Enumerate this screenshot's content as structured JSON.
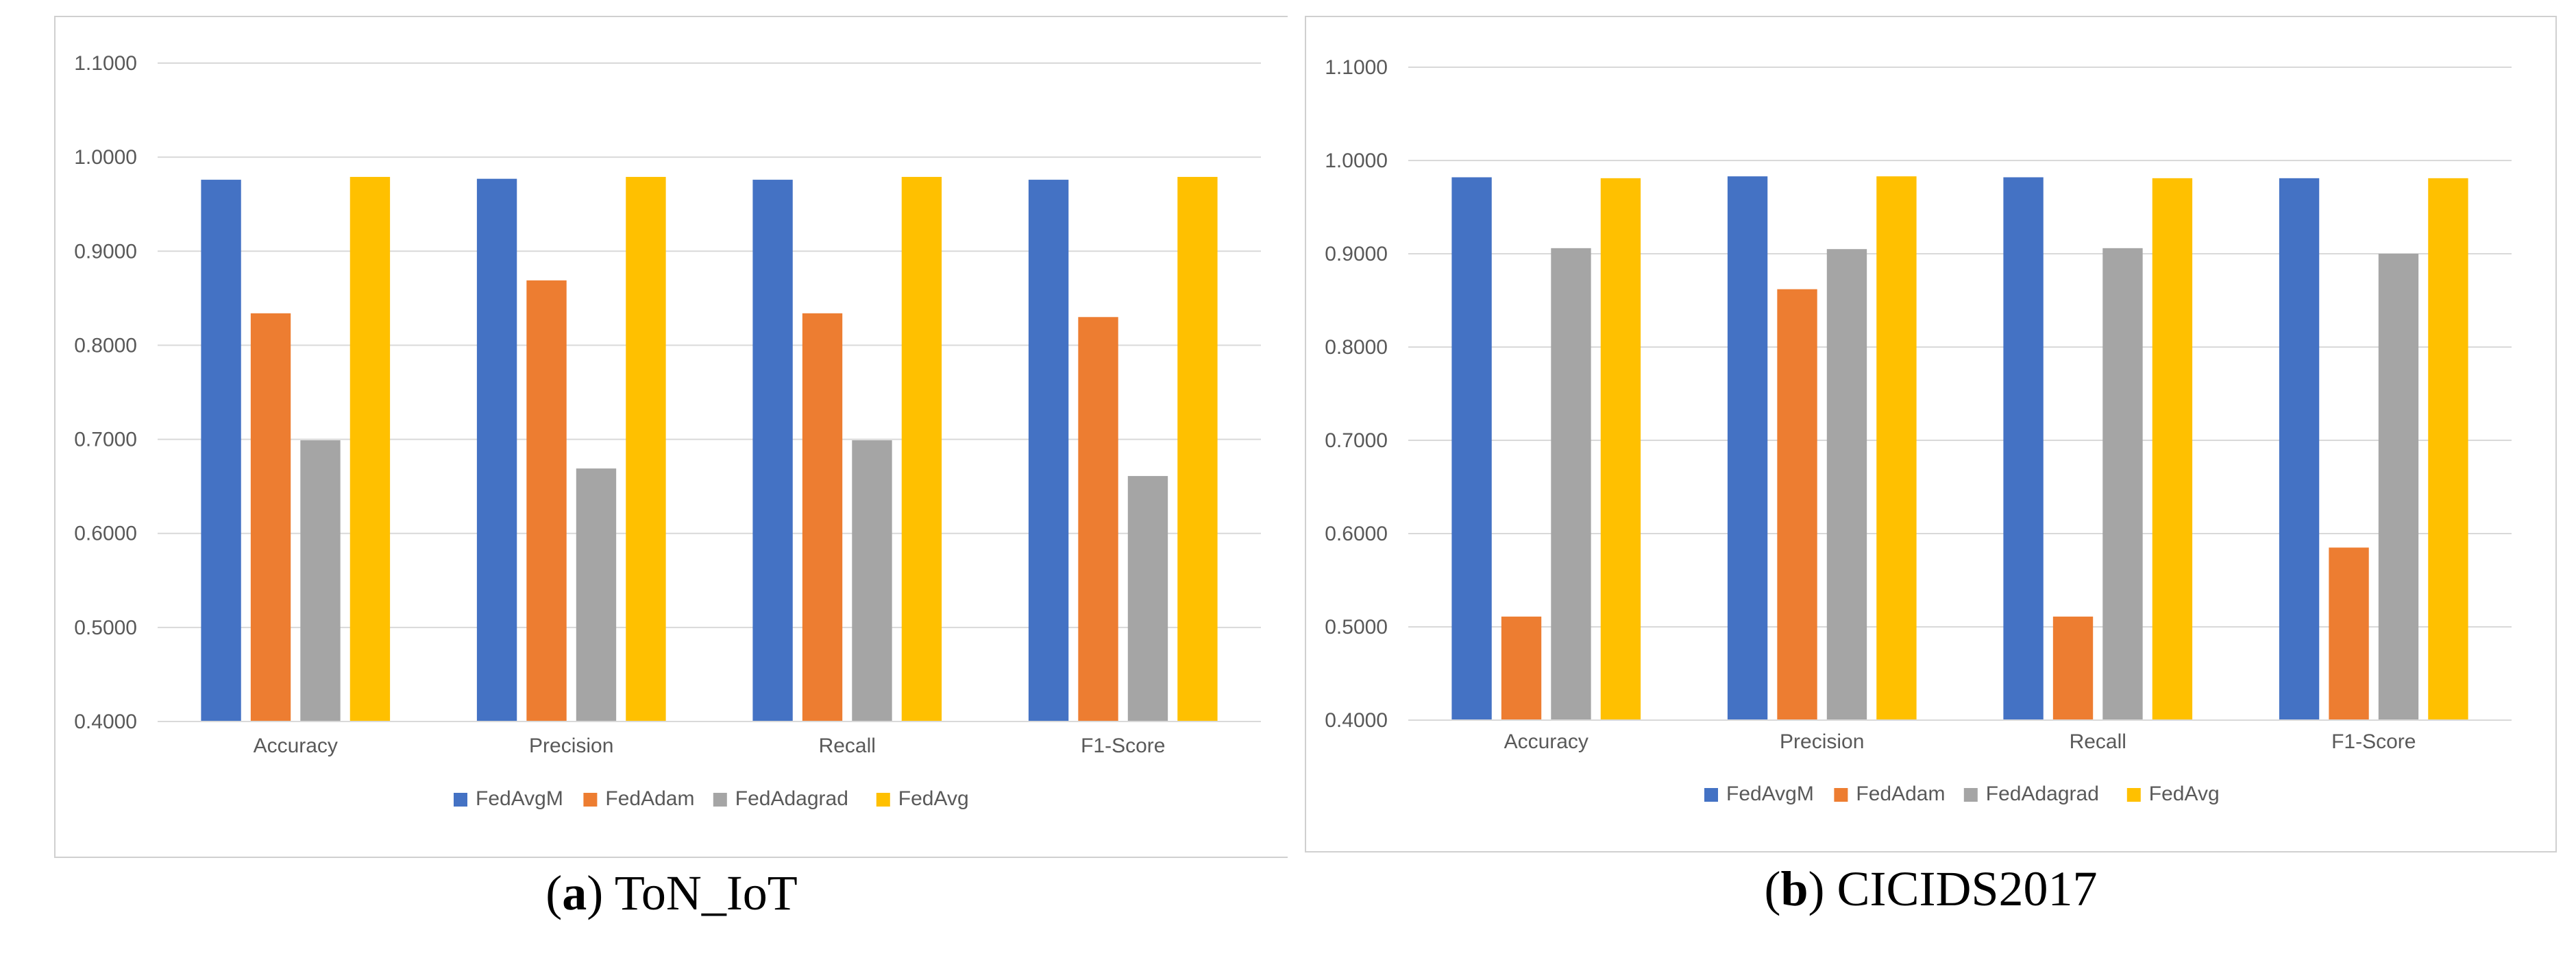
{
  "figures": [
    {
      "caption_letter": "a",
      "caption_text": "ToN_IoT"
    },
    {
      "caption_letter": "b",
      "caption_text": "CICIDS2017"
    }
  ],
  "colors": {
    "FedAvgM": "#4472C4",
    "FedAdam": "#ED7D31",
    "FedAdagrad": "#A5A5A5",
    "FedAvg": "#FFC000",
    "grid": "#D9D9D9",
    "frame": "#D0D0D0"
  },
  "chart_data": [
    {
      "type": "bar",
      "title": "",
      "xlabel": "",
      "ylabel": "",
      "ylim": [
        0.4,
        1.1
      ],
      "yticks": [
        "0.4000",
        "0.5000",
        "0.6000",
        "0.7000",
        "0.8000",
        "0.9000",
        "1.0000",
        "1.1000"
      ],
      "categories": [
        "Accuracy",
        "Precision",
        "Recall",
        "F1-Score"
      ],
      "legend_position": "bottom",
      "series": [
        {
          "name": "FedAvgM",
          "values": [
            0.976,
            0.977,
            0.976,
            0.976
          ]
        },
        {
          "name": "FedAdam",
          "values": [
            0.834,
            0.869,
            0.834,
            0.83
          ]
        },
        {
          "name": "FedAdagrad",
          "values": [
            0.699,
            0.669,
            0.699,
            0.661
          ]
        },
        {
          "name": "FedAvg",
          "values": [
            0.979,
            0.979,
            0.979,
            0.979
          ]
        }
      ]
    },
    {
      "type": "bar",
      "title": "",
      "xlabel": "",
      "ylabel": "",
      "ylim": [
        0.4,
        1.1
      ],
      "yticks": [
        "0.4000",
        "0.5000",
        "0.6000",
        "0.7000",
        "0.8000",
        "0.9000",
        "1.0000",
        "1.1000"
      ],
      "categories": [
        "Accuracy",
        "Precision",
        "Recall",
        "F1-Score"
      ],
      "legend_position": "bottom",
      "series": [
        {
          "name": "FedAvgM",
          "values": [
            0.982,
            0.983,
            0.982,
            0.981
          ]
        },
        {
          "name": "FedAdam",
          "values": [
            0.511,
            0.862,
            0.511,
            0.585
          ]
        },
        {
          "name": "FedAdagrad",
          "values": [
            0.906,
            0.905,
            0.906,
            0.9
          ]
        },
        {
          "name": "FedAvg",
          "values": [
            0.981,
            0.983,
            0.981,
            0.981
          ]
        }
      ]
    }
  ]
}
